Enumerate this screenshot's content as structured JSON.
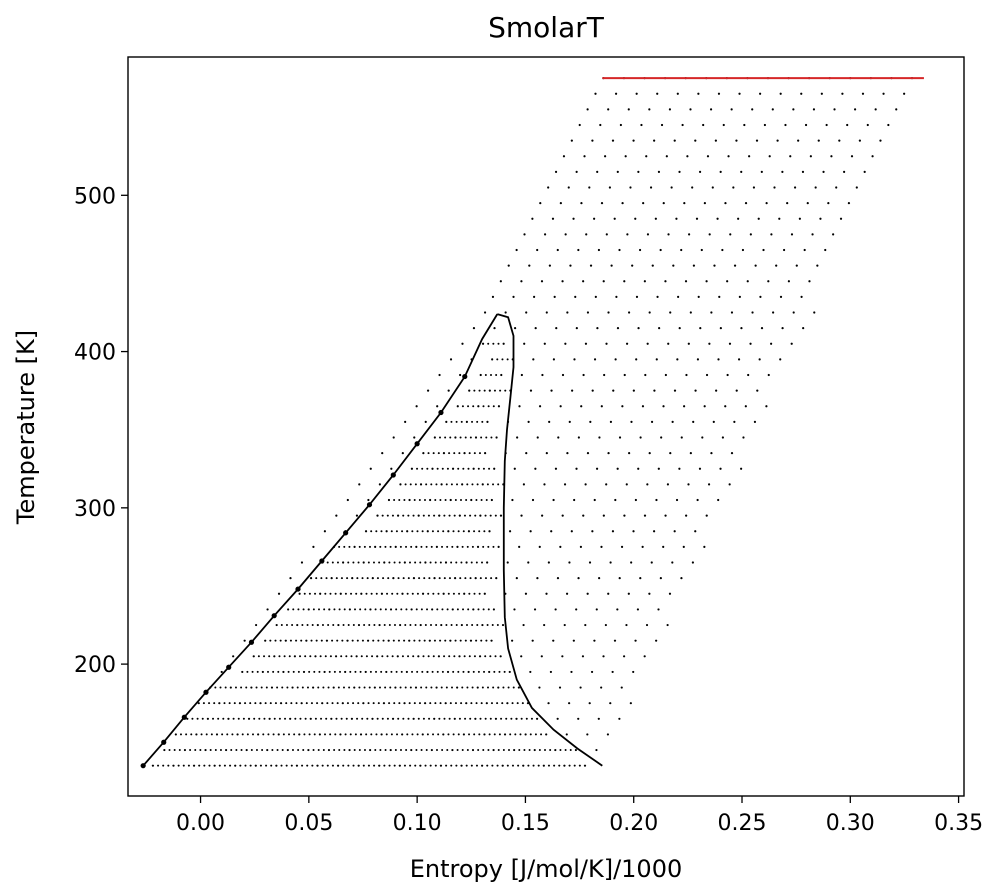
{
  "chart_data": {
    "type": "scatter",
    "title": "SmolarT",
    "xlabel": "Entropy [J/mol/K]/1000",
    "ylabel": "Temperature [K]",
    "xlim": [
      -0.0335,
      0.3525
    ],
    "ylim": [
      115.6,
      588.5
    ],
    "xticks": [
      0.0,
      0.05,
      0.1,
      0.15,
      0.2,
      0.25,
      0.3,
      0.35
    ],
    "xtick_labels": [
      "0.00",
      "0.05",
      "0.10",
      "0.15",
      "0.20",
      "0.25",
      "0.30",
      "0.35"
    ],
    "yticks": [
      200,
      300,
      400,
      500
    ],
    "ytick_labels": [
      "200",
      "300",
      "400",
      "500"
    ],
    "grid": false,
    "legend": "none",
    "series": [
      {
        "kind": "line",
        "role": "saturated-liquid-curve",
        "color": "#000000",
        "x": [
          -0.0265,
          -0.017,
          -0.0075,
          0.0025,
          0.013,
          0.0235,
          0.034,
          0.045,
          0.056,
          0.067,
          0.078,
          0.089,
          0.1,
          0.111,
          0.122,
          0.13,
          0.137
        ],
        "y": [
          135.0,
          150.0,
          166.0,
          182.0,
          198.0,
          214.0,
          231.0,
          248.0,
          266.0,
          284.0,
          302.0,
          321.0,
          341.0,
          361.0,
          384.0,
          408.0,
          424.0
        ]
      },
      {
        "kind": "line",
        "role": "saturated-vapor-curve",
        "color": "#000000",
        "x": [
          0.137,
          0.142,
          0.1445,
          0.1445,
          0.143,
          0.1415,
          0.1405,
          0.14,
          0.14,
          0.1405,
          0.142,
          0.146,
          0.153,
          0.163,
          0.174,
          0.1855
        ],
        "y": [
          424.0,
          422.0,
          410.0,
          390.0,
          370.0,
          350.0,
          330.0,
          300.0,
          260.0,
          230.0,
          210.0,
          190.0,
          172.0,
          158.0,
          146.0,
          135.0
        ]
      },
      {
        "kind": "points",
        "role": "isotherm-grid",
        "color": "#000000",
        "description": "Dotted isotherms: one row of points every ~10 K from 135 K to 575 K; each row spans from the liquid side to the superheated vapor side, with denser points inside the two-phase dome.",
        "t_min": 135,
        "t_max": 575,
        "t_step": 10,
        "row_left_x": {
          "T": [
            135,
            424,
            575
          ],
          "x": [
            -0.022,
            0.131,
            0.186
          ]
        },
        "row_right_x": {
          "T": [
            135,
            575
          ],
          "x": [
            0.1855,
            0.334
          ]
        }
      },
      {
        "kind": "line",
        "role": "top-isotherm",
        "color": "#d62728",
        "x": [
          0.1855,
          0.334
        ],
        "y": [
          575,
          575
        ]
      }
    ]
  }
}
